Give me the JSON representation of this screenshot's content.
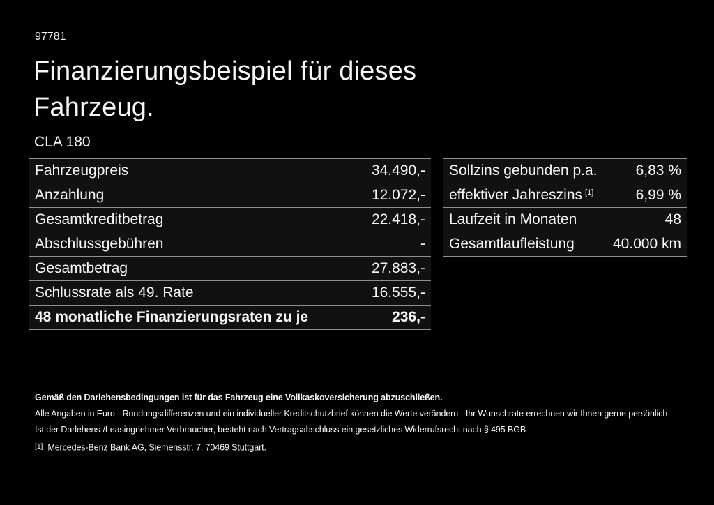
{
  "page": {
    "id_number": "97781",
    "title": "Finanzierungsbeispiel für dieses\nFahrzeug.",
    "model": "CLA 180"
  },
  "financing_table": {
    "rows": [
      {
        "label": "Fahrzeugpreis",
        "value": "34.490,-"
      },
      {
        "label": "Anzahlung",
        "value": "12.072,-"
      },
      {
        "label": "Gesamtkreditbetrag",
        "value": "22.418,-"
      },
      {
        "label": "Abschlussgebühren",
        "value": "-"
      },
      {
        "label": "Gesamtbetrag",
        "value": "27.883,-"
      },
      {
        "label": "Schlussrate als 49. Rate",
        "value": "16.555,-"
      },
      {
        "label": "48 monatliche Finanzierungsraten zu je",
        "value": "236,-"
      }
    ]
  },
  "conditions_table": {
    "rows": [
      {
        "label": "Sollzins gebunden p.a.",
        "value": "6,83 %"
      },
      {
        "label": "effektiver Jahreszins",
        "superscript": "[1]",
        "value": "6,99 %"
      },
      {
        "label": "Laufzeit in Monaten",
        "value": "48"
      },
      {
        "label": "Gesamtlaufleistung",
        "value": "40.000 km"
      }
    ]
  },
  "footnotes": {
    "insurance_note": "Gemäß den Darlehensbedingungen ist für das Fahrzeug eine Vollkaskoversicherung abzuschließen.",
    "disclaimer_line1": "Alle Angaben in Euro - Rundungsdifferenzen und ein individueller Kreditschutzbrief können die Werte verändern - Ihr Wunschrate errechnen wir Ihnen gerne persönlich",
    "disclaimer_line2": "Ist der Darlehens-/Leasingnehmer Verbraucher, besteht nach Vertragsabschluss ein gesetzliches Widerrufsrecht nach § 495 BGB",
    "bank_reference_marker": "[1]",
    "bank_reference": "Mercedes-Benz Bank AG, Siemensstr. 7, 70469 Stuttgart."
  },
  "colors": {
    "background": "#000000",
    "text": "#f7f7f7",
    "divider": "#8e8e8e",
    "row_background": "#111111"
  }
}
